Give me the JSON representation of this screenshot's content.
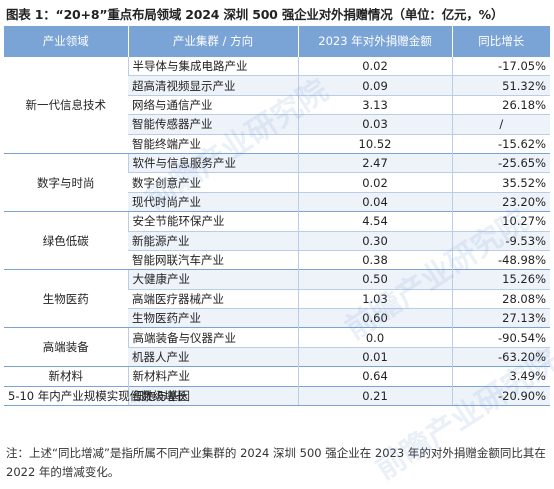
{
  "title": "图表 1：“20+8”重点布局领域 2024 深圳 500 强企业对外捐赠情况（单位：亿元，%）",
  "headers": [
    "产业领域",
    "产业集群 / 方向",
    "2023 年对外捐赠金额",
    "同比增长"
  ],
  "fields": [
    {
      "name": "新一代信息技术",
      "rows": [
        {
          "cluster": "半导体与集成电路产业",
          "amount": "0.02",
          "growth": "-17.05%"
        },
        {
          "cluster": "超高清视频显示产业",
          "amount": "0.09",
          "growth": "51.32%"
        },
        {
          "cluster": "网络与通信产业",
          "amount": "3.13",
          "growth": "26.18%"
        },
        {
          "cluster": "智能传感器产业",
          "amount": "0.03",
          "growth": "/"
        },
        {
          "cluster": "智能终端产业",
          "amount": "10.52",
          "growth": "-15.62%"
        }
      ]
    },
    {
      "name": "数字与时尚",
      "rows": [
        {
          "cluster": "软件与信息服务产业",
          "amount": "2.47",
          "growth": "-25.65%"
        },
        {
          "cluster": "数字创意产业",
          "amount": "0.02",
          "growth": "35.52%"
        },
        {
          "cluster": "现代时尚产业",
          "amount": "0.04",
          "growth": "23.20%"
        }
      ]
    },
    {
      "name": "绿色低碳",
      "rows": [
        {
          "cluster": "安全节能环保产业",
          "amount": "4.54",
          "growth": "10.27%"
        },
        {
          "cluster": "新能源产业",
          "amount": "0.30",
          "growth": "-9.53%"
        },
        {
          "cluster": "智能网联汽车产业",
          "amount": "0.38",
          "growth": "-48.98%"
        }
      ]
    },
    {
      "name": "生物医药",
      "rows": [
        {
          "cluster": "大健康产业",
          "amount": "0.50",
          "growth": "15.26%"
        },
        {
          "cluster": "高端医疗器械产业",
          "amount": "1.03",
          "growth": "28.08%"
        },
        {
          "cluster": "生物医药产业",
          "amount": "0.60",
          "growth": "27.13%"
        }
      ]
    },
    {
      "name": "高端装备",
      "rows": [
        {
          "cluster": "高端装备与仪器产业",
          "amount": "0.0",
          "growth": "-90.54%"
        },
        {
          "cluster": "机器人产业",
          "amount": "0.01",
          "growth": "-63.20%"
        }
      ]
    },
    {
      "name": "新材料",
      "rows": [
        {
          "cluster": "新材料产业",
          "amount": "0.64",
          "growth": "3.49%"
        }
      ]
    },
    {
      "name": "5-10 年内产业规模实现倍数级增长",
      "rows": [
        {
          "cluster": "细胞与基因",
          "amount": "0.21",
          "growth": "-20.90%"
        }
      ]
    }
  ],
  "note": "注：上述“同比增减”是指所属不同产业集群的 2024 深圳 500 强企业在 2023 年的对外捐赠金额同比其在 2022 年的增减变化。",
  "watermark": "前瞻产业研究院",
  "colors": {
    "header_bg": "#7aa3d6",
    "zebra": "#eef3fa",
    "grid": "#b9cde6"
  }
}
